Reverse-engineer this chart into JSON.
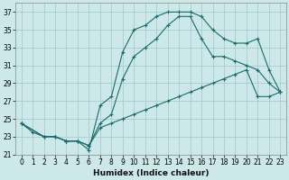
{
  "xlabel": "Humidex (Indice chaleur)",
  "bg_color": "#cde8e8",
  "grid_color": "#aacccc",
  "line_color": "#1a6b6b",
  "xlim": [
    -0.5,
    23.5
  ],
  "ylim": [
    21,
    38
  ],
  "xticks": [
    0,
    1,
    2,
    3,
    4,
    5,
    6,
    7,
    8,
    9,
    10,
    11,
    12,
    13,
    14,
    15,
    16,
    17,
    18,
    19,
    20,
    21,
    22,
    23
  ],
  "yticks": [
    21,
    23,
    25,
    27,
    29,
    31,
    33,
    35,
    37
  ],
  "line1_x": [
    0,
    1,
    2,
    3,
    4,
    5,
    6,
    7,
    8,
    9,
    10,
    11,
    12,
    13,
    14,
    15,
    16,
    17,
    18,
    19,
    20,
    21,
    22,
    23
  ],
  "line1_y": [
    24.5,
    23.5,
    23.0,
    23.0,
    22.5,
    22.5,
    21.5,
    26.5,
    27.5,
    32.5,
    35.0,
    35.5,
    36.5,
    37.0,
    37.0,
    37.0,
    36.5,
    35.0,
    34.0,
    33.5,
    33.5,
    34.0,
    30.5,
    28.0
  ],
  "line1_markers": [
    0,
    1,
    2,
    3,
    4,
    5,
    6,
    7,
    9,
    10,
    11,
    12,
    13,
    14,
    15,
    16,
    17,
    18,
    19,
    20,
    21,
    22,
    23
  ],
  "line2_x": [
    0,
    2,
    3,
    4,
    5,
    6,
    7,
    8,
    9,
    10,
    11,
    12,
    13,
    14,
    15,
    16,
    17,
    18,
    19,
    20,
    21,
    22,
    23
  ],
  "line2_y": [
    24.5,
    23.0,
    23.0,
    22.5,
    22.5,
    22.0,
    24.5,
    25.5,
    29.5,
    32.0,
    33.0,
    34.0,
    35.5,
    36.5,
    36.5,
    34.0,
    32.0,
    32.0,
    31.5,
    31.0,
    30.5,
    29.0,
    28.0
  ],
  "line3_x": [
    0,
    2,
    3,
    4,
    5,
    6,
    7,
    8,
    9,
    10,
    11,
    12,
    13,
    14,
    15,
    16,
    17,
    18,
    19,
    20,
    21,
    22,
    23
  ],
  "line3_y": [
    24.5,
    23.0,
    23.0,
    22.5,
    22.5,
    22.0,
    24.0,
    24.5,
    25.0,
    25.5,
    26.0,
    26.5,
    27.0,
    27.5,
    28.0,
    28.5,
    29.0,
    29.5,
    30.0,
    30.5,
    27.5,
    27.5,
    28.0
  ]
}
